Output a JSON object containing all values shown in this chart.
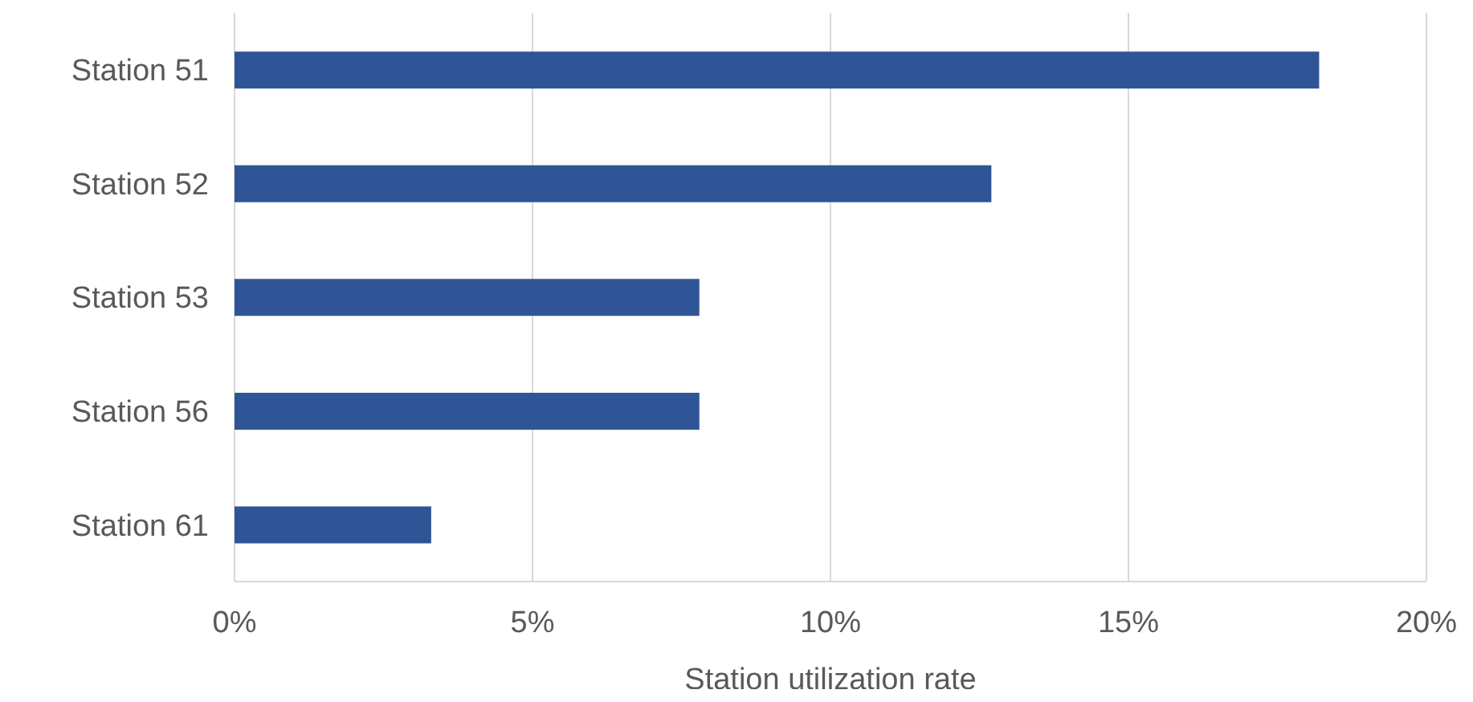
{
  "chart_data": {
    "type": "bar",
    "orientation": "horizontal",
    "xlabel": "Station utilization rate",
    "categories": [
      "Station 51",
      "Station 52",
      "Station 53",
      "Station 56",
      "Station 61"
    ],
    "values": [
      18.2,
      12.7,
      7.8,
      7.8,
      3.3
    ],
    "color": "#2f5597",
    "xlim": [
      0,
      20
    ],
    "xticks": [
      {
        "value": 0,
        "label": "0%"
      },
      {
        "value": 5,
        "label": "5%"
      },
      {
        "value": 10,
        "label": "10%"
      },
      {
        "value": 15,
        "label": "15%"
      },
      {
        "value": 20,
        "label": "20%"
      }
    ],
    "grid": "x"
  }
}
